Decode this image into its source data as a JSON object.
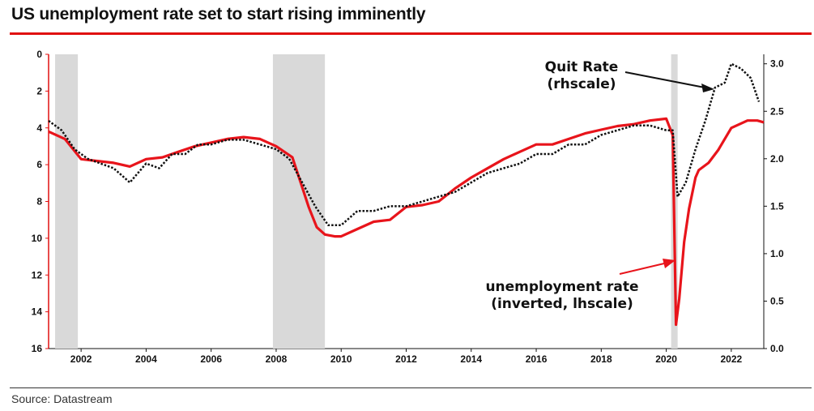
{
  "header": {
    "title": "US unemployment rate set to start rising imminently"
  },
  "footer": {
    "source": "Source: Datastream"
  },
  "chart_data": {
    "type": "line",
    "title": "US unemployment rate set to start rising imminently",
    "x_ticks": [
      "2002",
      "2004",
      "2006",
      "2008",
      "2010",
      "2012",
      "2014",
      "2016",
      "2018",
      "2020",
      "2022"
    ],
    "x_range": [
      2001.0,
      2023.0
    ],
    "left_axis": {
      "label": "unemployment rate (inverted, lhscale)",
      "range": [
        0,
        16
      ],
      "inverted": true,
      "ticks": [
        "0",
        "2",
        "4",
        "6",
        "8",
        "10",
        "12",
        "14",
        "16"
      ]
    },
    "right_axis": {
      "label": "Quit Rate (rhscale)",
      "range": [
        0.0,
        3.1
      ],
      "ticks": [
        "0.0",
        "0.5",
        "1.0",
        "1.5",
        "2.0",
        "2.5",
        "3.0"
      ]
    },
    "recessions": [
      [
        2001.2,
        2001.9
      ],
      [
        2007.9,
        2009.5
      ],
      [
        2020.15,
        2020.35
      ]
    ],
    "annotations": {
      "quit_line1": "Quit Rate",
      "quit_line2": "(rhscale)",
      "unemp_line1": "unemployment rate",
      "unemp_line2": "(inverted, lhscale)"
    },
    "series": [
      {
        "name": "unemployment rate",
        "axis": "left",
        "color": "#e8141b",
        "style": "solid",
        "x": [
          2001.0,
          2001.5,
          2002.0,
          2002.5,
          2003.0,
          2003.5,
          2004.0,
          2004.5,
          2005.0,
          2005.5,
          2006.0,
          2006.5,
          2007.0,
          2007.5,
          2008.0,
          2008.5,
          2009.0,
          2009.25,
          2009.5,
          2009.8,
          2010.0,
          2010.5,
          2011.0,
          2011.5,
          2012.0,
          2012.5,
          2013.0,
          2013.5,
          2014.0,
          2014.5,
          2015.0,
          2015.5,
          2016.0,
          2016.5,
          2017.0,
          2017.5,
          2018.0,
          2018.5,
          2019.0,
          2019.5,
          2020.0,
          2020.2,
          2020.3,
          2020.4,
          2020.55,
          2020.7,
          2020.9,
          2021.0,
          2021.3,
          2021.6,
          2022.0,
          2022.5,
          2022.8,
          2023.0
        ],
        "values": [
          4.2,
          4.6,
          5.7,
          5.8,
          5.9,
          6.1,
          5.7,
          5.6,
          5.3,
          5.0,
          4.8,
          4.6,
          4.5,
          4.6,
          5.0,
          5.6,
          8.3,
          9.4,
          9.8,
          9.9,
          9.9,
          9.5,
          9.1,
          9.0,
          8.3,
          8.2,
          8.0,
          7.3,
          6.7,
          6.2,
          5.7,
          5.3,
          4.9,
          4.9,
          4.6,
          4.3,
          4.1,
          3.9,
          3.8,
          3.6,
          3.5,
          4.4,
          14.7,
          13.3,
          10.2,
          8.4,
          6.7,
          6.3,
          5.9,
          5.2,
          4.0,
          3.6,
          3.6,
          3.7
        ]
      },
      {
        "name": "Quit Rate",
        "axis": "right",
        "color": "#111111",
        "style": "dotted",
        "x": [
          2001.0,
          2001.4,
          2001.8,
          2002.2,
          2002.6,
          2003.0,
          2003.5,
          2004.0,
          2004.4,
          2004.8,
          2005.2,
          2005.6,
          2006.0,
          2006.5,
          2007.0,
          2007.5,
          2008.0,
          2008.4,
          2008.8,
          2009.2,
          2009.6,
          2010.0,
          2010.5,
          2011.0,
          2011.5,
          2012.0,
          2012.5,
          2013.0,
          2013.5,
          2014.0,
          2014.5,
          2015.0,
          2015.5,
          2016.0,
          2016.5,
          2017.0,
          2017.5,
          2018.0,
          2018.5,
          2019.0,
          2019.5,
          2020.0,
          2020.2,
          2020.35,
          2020.6,
          2020.9,
          2021.2,
          2021.5,
          2021.8,
          2022.0,
          2022.3,
          2022.6,
          2022.85
        ],
        "values": [
          2.4,
          2.3,
          2.1,
          2.0,
          1.95,
          1.9,
          1.75,
          1.95,
          1.9,
          2.05,
          2.05,
          2.15,
          2.15,
          2.2,
          2.2,
          2.15,
          2.1,
          2.0,
          1.75,
          1.5,
          1.3,
          1.3,
          1.45,
          1.45,
          1.5,
          1.5,
          1.55,
          1.6,
          1.65,
          1.75,
          1.85,
          1.9,
          1.95,
          2.05,
          2.05,
          2.15,
          2.15,
          2.25,
          2.3,
          2.35,
          2.35,
          2.3,
          2.3,
          1.6,
          1.75,
          2.1,
          2.4,
          2.75,
          2.8,
          3.0,
          2.95,
          2.85,
          2.6
        ]
      }
    ]
  }
}
